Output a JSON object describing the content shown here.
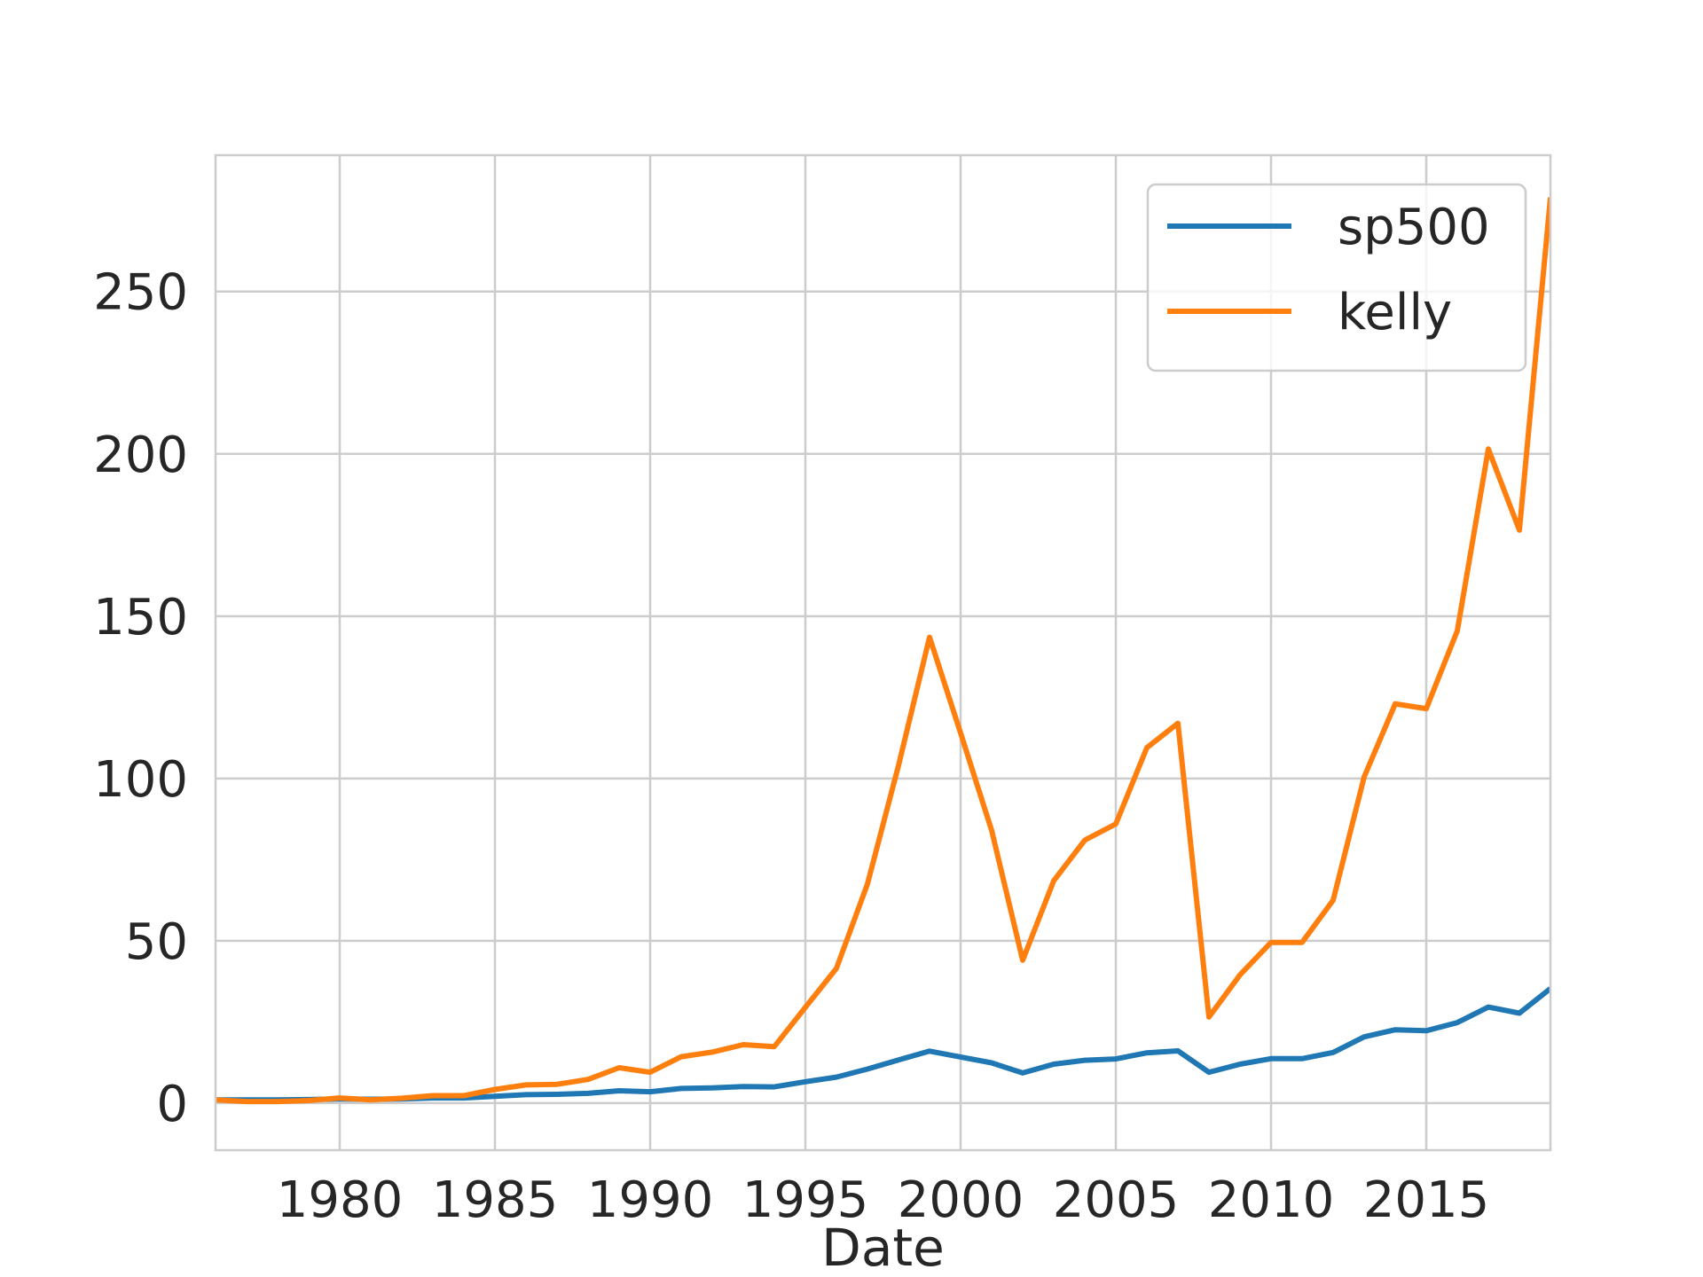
{
  "chart_data": {
    "type": "line",
    "title": "",
    "xlabel": "Date",
    "ylabel": "",
    "xlim": [
      1976,
      2019
    ],
    "ylim": [
      -14.5,
      292
    ],
    "xticks": [
      1980,
      1985,
      1990,
      1995,
      2000,
      2005,
      2010,
      2015
    ],
    "yticks": [
      0,
      50,
      100,
      150,
      200,
      250
    ],
    "grid": true,
    "legend_position": "top-right",
    "x": [
      1976,
      1977,
      1978,
      1979,
      1980,
      1981,
      1982,
      1983,
      1984,
      1985,
      1986,
      1987,
      1988,
      1989,
      1990,
      1991,
      1992,
      1993,
      1994,
      1995,
      1996,
      1997,
      1998,
      1999,
      2000,
      2001,
      2002,
      2003,
      2004,
      2005,
      2006,
      2007,
      2008,
      2009,
      2010,
      2011,
      2012,
      2013,
      2014,
      2015,
      2016,
      2017,
      2018,
      2019
    ],
    "series": [
      {
        "name": "sp500",
        "color": "#1f77b4",
        "values": [
          1.0,
          1.0,
          1.0,
          1.1,
          1.3,
          1.2,
          1.3,
          1.6,
          1.6,
          2.1,
          2.6,
          2.7,
          3.0,
          3.8,
          3.5,
          4.5,
          4.7,
          5.1,
          5.0,
          6.6,
          8.0,
          10.5,
          13.3,
          16.0,
          14.2,
          12.4,
          9.3,
          12.0,
          13.2,
          13.6,
          15.5,
          16.1,
          9.5,
          12.0,
          13.7,
          13.7,
          15.6,
          20.4,
          22.6,
          22.3,
          24.8,
          29.6,
          27.7,
          35.3
        ]
      },
      {
        "name": "kelly",
        "color": "#ff7f0e",
        "values": [
          1.0,
          0.5,
          0.5,
          0.8,
          1.6,
          1.0,
          1.5,
          2.3,
          2.3,
          4.2,
          5.6,
          5.8,
          7.3,
          10.9,
          9.5,
          14.3,
          15.7,
          18.0,
          17.4,
          29.5,
          41.5,
          67.5,
          104,
          143.5,
          114,
          84,
          44,
          68.5,
          81,
          86,
          109.5,
          117,
          26.5,
          39.5,
          49.5,
          49.5,
          62.5,
          100.5,
          123,
          121.5,
          145.5,
          201.5,
          176.5,
          279
        ]
      }
    ]
  }
}
